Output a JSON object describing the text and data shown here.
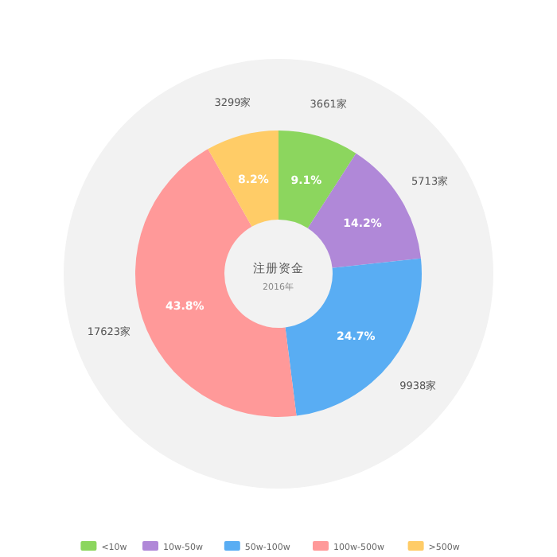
{
  "chart_data": {
    "type": "donut",
    "title": "注册资金",
    "subtitle": "2016年",
    "categories": [
      "<10w",
      "10w-50w",
      "50w-100w",
      "100w-500w",
      ">500w"
    ],
    "values": [
      3661,
      5713,
      9938,
      17623,
      3299
    ],
    "colors": [
      "#8cd65e",
      "#b088d8",
      "#59adf3",
      "#ff9999",
      "#ffcc67"
    ],
    "value_labels": [
      "3661家",
      "5713家",
      "9938家",
      "17623家",
      "3299家"
    ],
    "annotations": [
      "9.1%",
      "14.2%",
      "24.7%",
      "43.8%",
      "8.2%"
    ],
    "legend": "bottom"
  }
}
